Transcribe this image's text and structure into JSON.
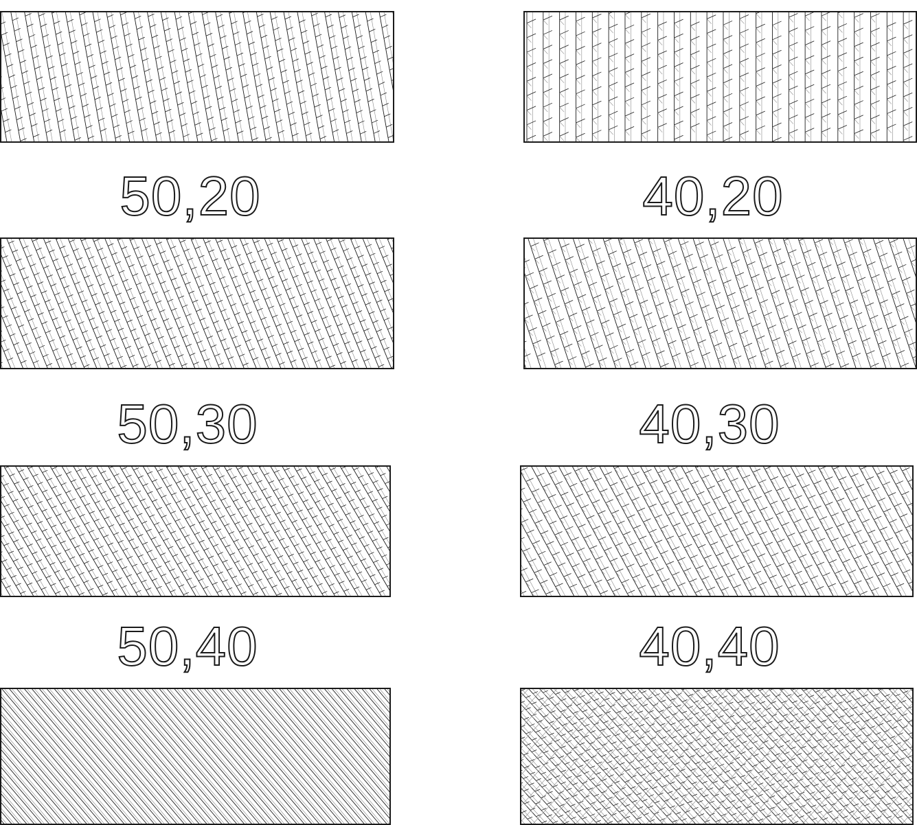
{
  "labels": {
    "left": [
      "50,20",
      "50,30",
      "50,40"
    ],
    "right": [
      "40,20",
      "40,30",
      "40,40"
    ]
  },
  "colors": {
    "stroke": "#1a1a1a",
    "light_stroke": "#888888",
    "background": "#ffffff"
  }
}
